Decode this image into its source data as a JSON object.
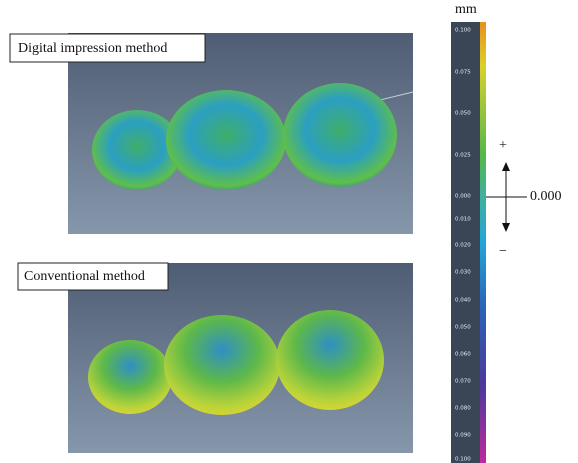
{
  "figure": {
    "panels": [
      {
        "label": "Digital impression  method"
      },
      {
        "label": "Conventional method"
      }
    ],
    "scale": {
      "unit": "mm",
      "ticks": [
        "0.100",
        "0.075",
        "0.050",
        "0.025",
        "0.000",
        "0.010",
        "0.020",
        "0.030",
        "0.040",
        "0.050",
        "0.060",
        "0.070",
        "0.080",
        "0.090",
        "0.100"
      ],
      "plus": "+",
      "minus": "−",
      "zero_label": "0.000"
    }
  }
}
